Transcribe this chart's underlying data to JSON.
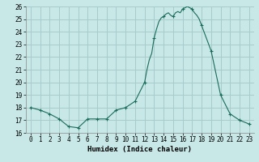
{
  "xlabel": "Humidex (Indice chaleur)",
  "ylabel": "",
  "background_color": "#c8e8e8",
  "grid_color": "#a8cccc",
  "line_color": "#1a6b5a",
  "ylim": [
    16,
    26
  ],
  "xlim": [
    -0.5,
    23.5
  ],
  "yticks": [
    16,
    17,
    18,
    19,
    20,
    21,
    22,
    23,
    24,
    25,
    26
  ],
  "xticks": [
    0,
    1,
    2,
    3,
    4,
    5,
    6,
    7,
    8,
    9,
    10,
    11,
    12,
    13,
    14,
    15,
    16,
    17,
    18,
    19,
    20,
    21,
    22,
    23
  ],
  "x": [
    0,
    1,
    2,
    3,
    4,
    5,
    6,
    7,
    8,
    9,
    10,
    11,
    12,
    12.25,
    12.5,
    12.75,
    13,
    13.25,
    13.5,
    13.75,
    14,
    14.25,
    14.5,
    14.75,
    15,
    15.25,
    15.5,
    15.75,
    16,
    16.25,
    16.5,
    16.75,
    17,
    17.25,
    17.5,
    17.75,
    18,
    19,
    20,
    21,
    22,
    23
  ],
  "y": [
    18.0,
    17.8,
    17.5,
    17.1,
    16.5,
    16.4,
    17.1,
    17.1,
    17.1,
    17.8,
    18.0,
    18.5,
    20.0,
    21.0,
    21.8,
    22.3,
    23.5,
    24.2,
    24.8,
    25.1,
    25.2,
    25.4,
    25.5,
    25.3,
    25.2,
    25.5,
    25.6,
    25.5,
    25.8,
    25.9,
    26.0,
    25.9,
    25.8,
    25.5,
    25.3,
    25.0,
    24.5,
    22.5,
    19.0,
    17.5,
    17.0,
    16.7
  ]
}
